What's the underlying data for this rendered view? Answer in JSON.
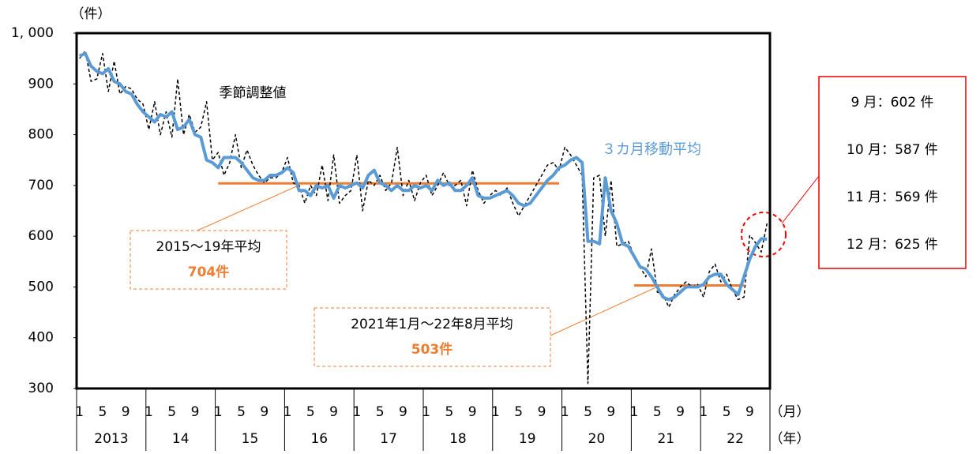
{
  "chart_data": {
    "type": "line",
    "y_unit": "（件）",
    "x_unit": "（月）",
    "year_unit": "（年）",
    "categories": [
      "1",
      null,
      null,
      null,
      "5",
      null,
      null,
      null,
      "9",
      null,
      null,
      null,
      "1",
      null,
      null,
      null,
      "5",
      null,
      null,
      null,
      "9",
      null,
      null,
      null,
      "1",
      null,
      null,
      null,
      "5",
      null,
      null,
      null,
      "9",
      null,
      null,
      null,
      "1",
      null,
      null,
      null,
      "5",
      null,
      null,
      null,
      "9",
      null,
      null,
      null,
      "1",
      null,
      null,
      null,
      "5",
      null,
      null,
      null,
      "9",
      null,
      null,
      null,
      "1",
      null,
      null,
      null,
      "5",
      null,
      null,
      null,
      "9",
      null,
      null,
      null,
      "1",
      null,
      null,
      null,
      "5",
      null,
      null,
      null,
      "9",
      null,
      null,
      null,
      "1",
      null,
      null,
      null,
      "5",
      null,
      null,
      null,
      "9",
      null,
      null,
      null,
      "1",
      null,
      null,
      null,
      "5",
      null,
      null,
      null,
      "9",
      null,
      null,
      null,
      "1",
      null,
      null,
      null,
      "5",
      null,
      null,
      null,
      "9",
      null,
      null,
      null
    ],
    "years": [
      "2013",
      "14",
      "15",
      "16",
      "17",
      "18",
      "19",
      "20",
      "21",
      "22"
    ],
    "series": [
      {
        "name": "季節調整値",
        "color": "#000000",
        "dashed": true,
        "values": [
          950,
          965,
          905,
          910,
          960,
          885,
          945,
          880,
          895,
          890,
          870,
          860,
          810,
          865,
          800,
          845,
          795,
          910,
          800,
          840,
          805,
          815,
          865,
          750,
          765,
          720,
          745,
          800,
          735,
          770,
          740,
          720,
          705,
          715,
          715,
          725,
          755,
          705,
          700,
          665,
          700,
          680,
          740,
          670,
          760,
          665,
          680,
          690,
          760,
          650,
          710,
          700,
          720,
          690,
          705,
          775,
          680,
          710,
          670,
          705,
          720,
          680,
          700,
          725,
          700,
          700,
          710,
          660,
          730,
          690,
          665,
          680,
          690,
          680,
          695,
          665,
          640,
          660,
          680,
          700,
          720,
          740,
          745,
          730,
          775,
          760,
          740,
          720,
          310,
          715,
          720,
          600,
          710,
          580,
          585,
          590,
          560,
          540,
          520,
          575,
          490,
          485,
          460,
          485,
          500,
          510,
          500,
          505,
          480,
          530,
          545,
          510,
          525,
          495,
          475,
          480,
          602,
          587,
          569,
          625
        ]
      },
      {
        "name": "３カ月移動平均",
        "color": "#5b9bd5",
        "dashed": false,
        "values": [
          955,
          960,
          935,
          925,
          920,
          930,
          905,
          900,
          885,
          880,
          860,
          845,
          835,
          825,
          840,
          835,
          845,
          810,
          815,
          830,
          800,
          795,
          750,
          745,
          735,
          755,
          755,
          755,
          745,
          730,
          715,
          710,
          710,
          720,
          720,
          725,
          735,
          725,
          690,
          690,
          680,
          700,
          695,
          700,
          675,
          700,
          695,
          700,
          705,
          695,
          720,
          730,
          705,
          700,
          690,
          700,
          690,
          690,
          700,
          695,
          700,
          690,
          710,
          700,
          705,
          690,
          690,
          700,
          715,
          680,
          675,
          675,
          680,
          685,
          690,
          680,
          665,
          660,
          665,
          680,
          695,
          710,
          720,
          735,
          740,
          750,
          755,
          745,
          590,
          590,
          585,
          715,
          650,
          625,
          585,
          580,
          560,
          540,
          535,
          520,
          500,
          480,
          475,
          480,
          490,
          500,
          500,
          500,
          505,
          520,
          525,
          525,
          505,
          495,
          485,
          520,
          555,
          580,
          595,
          594
        ]
      }
    ],
    "ylim": [
      300,
      1000
    ],
    "yticks": [
      300,
      400,
      500,
      600,
      700,
      800,
      900,
      {
        "value": 1000,
        "label": "1, 000"
      }
    ],
    "reference_lines": [
      {
        "value": 704,
        "from": 24,
        "to": 83,
        "title": "2015～19年平均",
        "label": "704件",
        "color": "#ed7d31"
      },
      {
        "value": 503,
        "from": 96,
        "to": 115,
        "title": "2021年1月～22年8月平均",
        "label": "503件",
        "color": "#ed7d31"
      }
    ],
    "callout": [
      "9 月：602 件",
      "10 月：587 件",
      "11 月：569 件",
      "12 月：625 件"
    ]
  }
}
